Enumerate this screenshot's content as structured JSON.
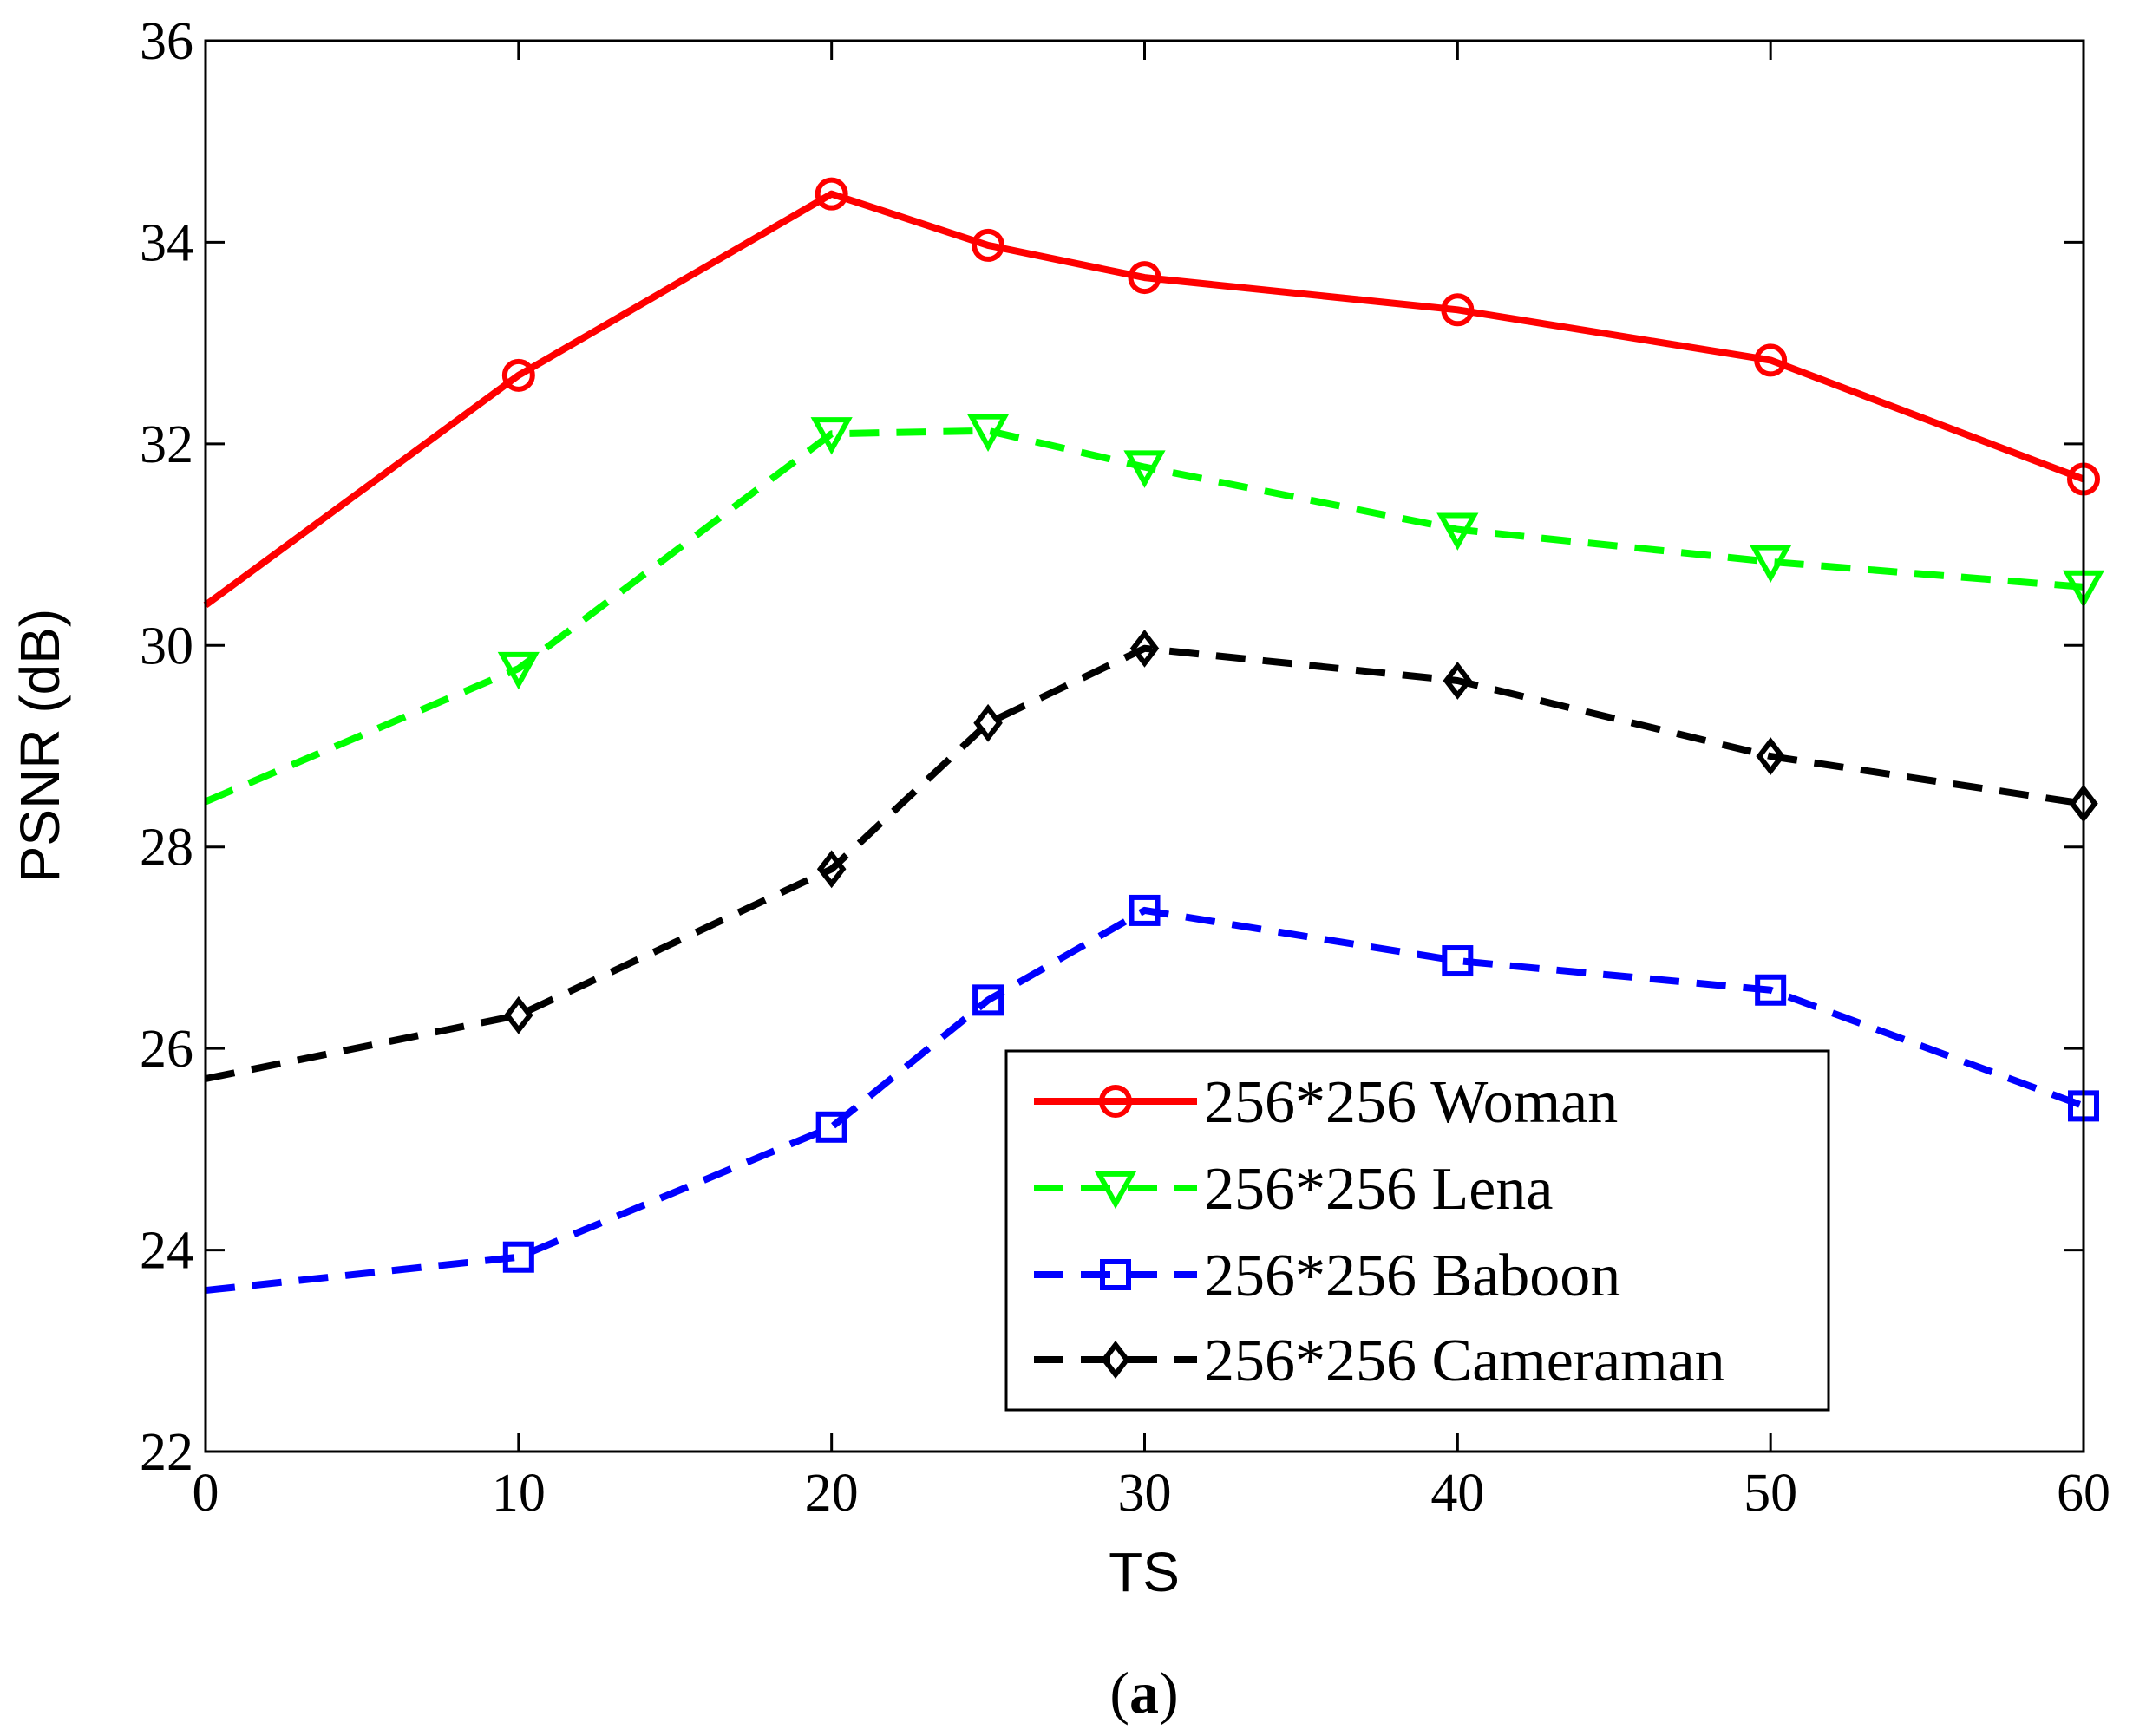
{
  "chart_data": {
    "type": "line",
    "xlabel": "TS",
    "ylabel": "PSNR (dB)",
    "xlim": [
      0,
      60
    ],
    "ylim": [
      22,
      36
    ],
    "xticks": [
      "0",
      "10",
      "20",
      "30",
      "40",
      "50",
      "60"
    ],
    "yticks": [
      "22",
      "24",
      "26",
      "28",
      "30",
      "32",
      "34",
      "36"
    ],
    "x": [
      0,
      10,
      20,
      25,
      30,
      40,
      50,
      60
    ],
    "legend_position": "bottom-right",
    "series": [
      {
        "name": "256*256 Woman",
        "color": "#ff0000",
        "dash": "solid",
        "marker": "circle",
        "values": [
          30.4,
          32.68,
          34.48,
          33.97,
          33.65,
          33.33,
          32.83,
          31.65
        ]
      },
      {
        "name": "256*256 Lena",
        "color": "#00ff00",
        "dash": "dashed",
        "marker": "triangle-down",
        "values": [
          28.45,
          29.77,
          32.1,
          32.13,
          31.77,
          31.15,
          30.83,
          30.58
        ]
      },
      {
        "name": "256*256 Baboon",
        "color": "#0000ff",
        "dash": "dashed",
        "marker": "square",
        "values": [
          23.6,
          23.93,
          25.22,
          26.48,
          27.37,
          26.87,
          26.58,
          25.43
        ]
      },
      {
        "name": "256*256 Cameraman",
        "color": "#000000",
        "dash": "dashed",
        "marker": "diamond",
        "values": [
          25.7,
          26.33,
          27.78,
          29.23,
          29.97,
          29.65,
          28.9,
          28.43
        ]
      }
    ],
    "caption_open": "(",
    "caption_letter": "a",
    "caption_close": ")"
  }
}
